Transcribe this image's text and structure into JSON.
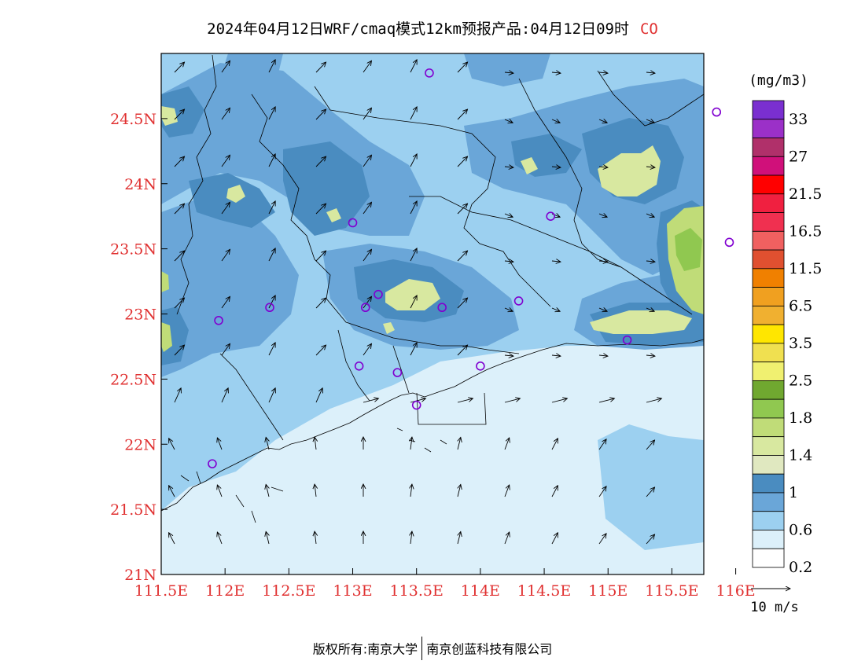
{
  "title": {
    "main": "2024年04月12日WRF/cmaq模式12km预报产品:04月12日09时",
    "pollutant": "CO"
  },
  "map": {
    "lon_labels": [
      "111.5E",
      "112E",
      "112.5E",
      "113E",
      "113.5E",
      "114E",
      "114.5E",
      "115E",
      "115.5E",
      "116E"
    ],
    "lon_values": [
      111.5,
      112,
      112.5,
      113,
      113.5,
      114,
      114.5,
      115,
      115.5,
      116
    ],
    "lat_labels": [
      "21N",
      "21.5N",
      "22N",
      "22.5N",
      "23N",
      "23.5N",
      "24N",
      "24.5N"
    ],
    "lat_values": [
      21,
      21.5,
      22,
      22.5,
      23,
      23.5,
      24,
      24.5
    ],
    "lon_range": [
      111.5,
      115.75
    ],
    "lat_range": [
      21.0,
      25.0
    ],
    "tick_label_color": "#e03030",
    "stations": [
      [
        113.6,
        24.85
      ],
      [
        115.85,
        24.55
      ],
      [
        113.0,
        23.7
      ],
      [
        114.55,
        23.75
      ],
      [
        115.95,
        23.55
      ],
      [
        113.2,
        23.15
      ],
      [
        112.35,
        23.05
      ],
      [
        113.1,
        23.05
      ],
      [
        113.7,
        23.05
      ],
      [
        114.3,
        23.1
      ],
      [
        111.95,
        22.95
      ],
      [
        113.05,
        22.6
      ],
      [
        113.35,
        22.55
      ],
      [
        114.0,
        22.6
      ],
      [
        115.15,
        22.8
      ],
      [
        113.5,
        22.3
      ],
      [
        111.9,
        21.85
      ]
    ],
    "station_color": "#8000d0"
  },
  "legend": {
    "unit": "(mg/m3)",
    "labels": [
      "33",
      "27",
      "21.5",
      "16.5",
      "11.5",
      "6.5",
      "3.5",
      "2.5",
      "1.8",
      "1.4",
      "1",
      "0.6",
      "0.2"
    ],
    "colors": [
      "#7a2fd0",
      "#9b30c8",
      "#b0306a",
      "#d0107a",
      "#ff0000",
      "#f02040",
      "#f03050",
      "#f06060",
      "#e05030",
      "#f08000",
      "#f0a020",
      "#f0b030",
      "#ffe600",
      "#f0e050",
      "#f0f070",
      "#70a830",
      "#90c850",
      "#c0dc78",
      "#d8e8a0",
      "#e0e8c0",
      "#4a8cc0",
      "#6aa6d8",
      "#9cd0f0",
      "#dcf0fa",
      "#ffffff"
    ],
    "wind_ref_label": "10 m/s"
  },
  "credit": {
    "left": "版权所有:南京大学",
    "right": "南京创蓝科技有限公司"
  }
}
